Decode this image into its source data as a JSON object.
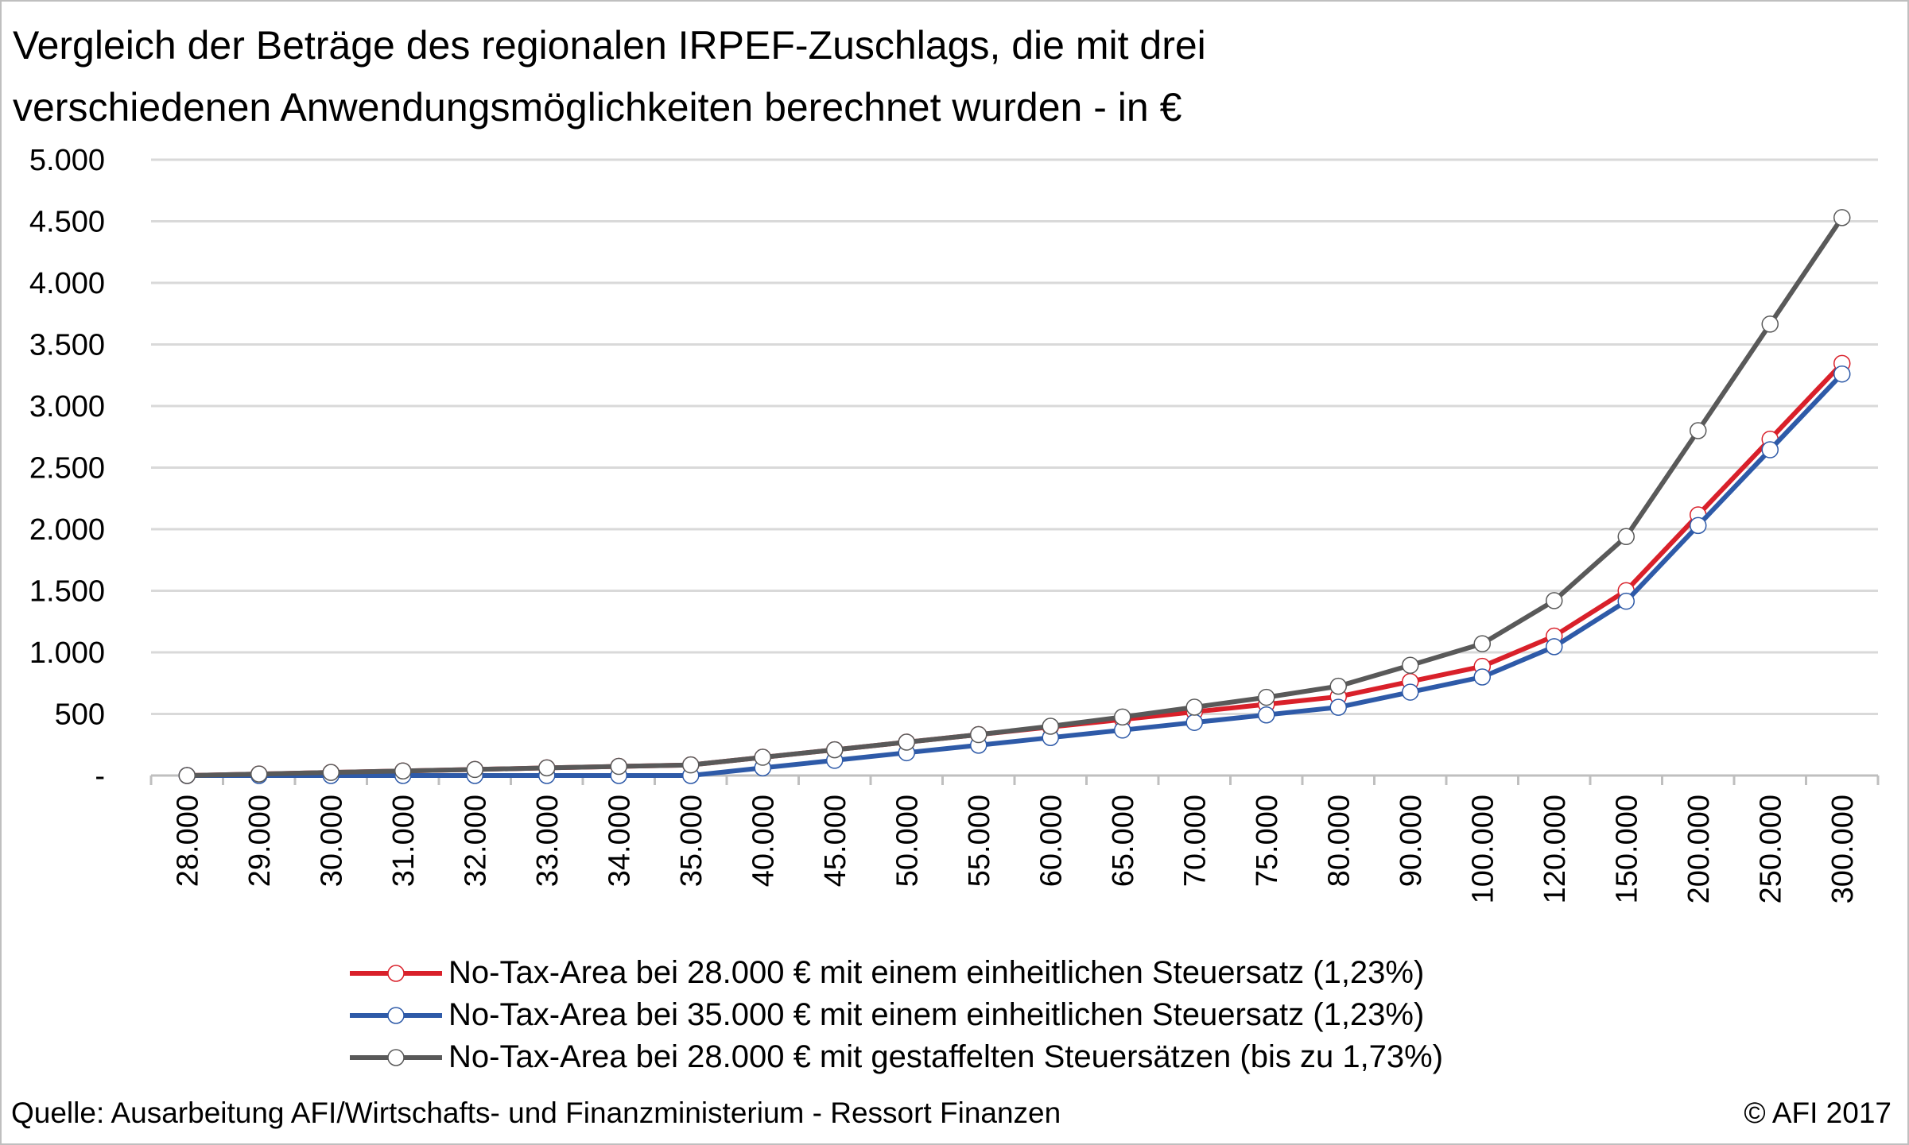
{
  "title_lines": [
    "Vergleich der Beträge des regionalen IRPEF-Zuschlags, die mit drei",
    "verschiedenen Anwendungsmöglichkeiten berechnet wurden - in €"
  ],
  "source": "Quelle: Ausarbeitung AFI/Wirtschafts- und Finanzministerium - Ressort Finanzen",
  "copyright": "© AFI 2017",
  "chart_data": {
    "type": "line",
    "title": "Vergleich der Beträge des regionalen IRPEF-Zuschlags, die mit drei verschiedenen Anwendungsmöglichkeiten berechnet wurden - in €",
    "xlabel": "",
    "ylabel": "",
    "ylim": [
      0,
      5000
    ],
    "y_ticks": [
      0,
      500,
      1000,
      1500,
      2000,
      2500,
      3000,
      3500,
      4000,
      4500,
      5000
    ],
    "y_tick_labels": [
      "-",
      "500",
      "1.000",
      "1.500",
      "2.000",
      "2.500",
      "3.000",
      "3.500",
      "4.000",
      "4.500",
      "5.000"
    ],
    "grid": true,
    "legend_position": "bottom",
    "x_tick_rotation": "vertical",
    "categories": [
      "28.000",
      "29.000",
      "30.000",
      "31.000",
      "32.000",
      "33.000",
      "34.000",
      "35.000",
      "40.000",
      "45.000",
      "50.000",
      "55.000",
      "60.000",
      "65.000",
      "70.000",
      "75.000",
      "80.000",
      "90.000",
      "100.000",
      "120.000",
      "150.000",
      "200.000",
      "250.000",
      "300.000"
    ],
    "series": [
      {
        "name": "No-Tax-Area bei 28.000 € mit einem einheitlichen Steuersatz (1,23%)",
        "color": "#d9202a",
        "values": [
          0,
          12,
          25,
          37,
          49,
          62,
          74,
          86,
          148,
          209,
          271,
          332,
          394,
          455,
          517,
          578,
          640,
          763,
          886,
          1132,
          1501,
          2116,
          2731,
          3346
        ]
      },
      {
        "name": "No-Tax-Area bei 35.000 € mit einem einheitlichen Steuersatz (1,23%)",
        "color": "#2e5aa8",
        "values": [
          0,
          0,
          0,
          0,
          0,
          0,
          0,
          0,
          62,
          123,
          185,
          246,
          308,
          369,
          431,
          492,
          554,
          677,
          800,
          1046,
          1415,
          2030,
          2645,
          3260
        ]
      },
      {
        "name": "No-Tax-Area bei 28.000 € mit gestaffelten Steuersätzen (bis zu 1,73%)",
        "color": "#595959",
        "values": [
          0,
          12,
          25,
          37,
          49,
          62,
          74,
          86,
          148,
          209,
          271,
          332,
          400,
          475,
          555,
          635,
          725,
          895,
          1070,
          1420,
          1940,
          2800,
          3665,
          4530
        ]
      }
    ]
  }
}
